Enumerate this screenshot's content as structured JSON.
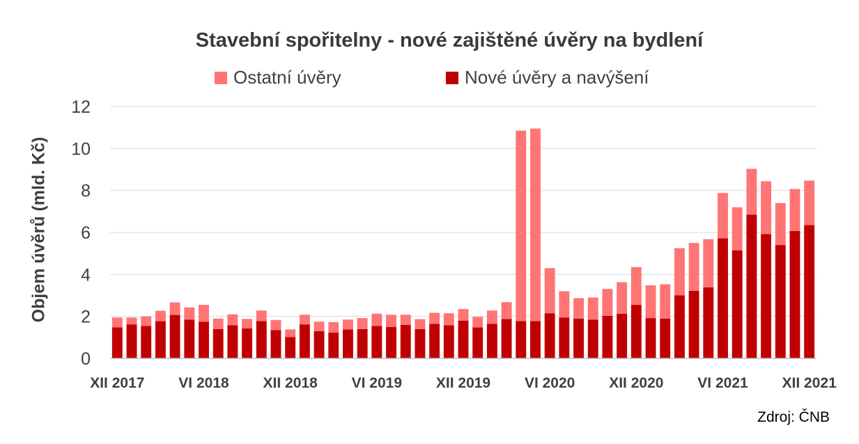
{
  "chart_data": {
    "type": "bar",
    "stacked": true,
    "title": "Stavební spořitelny - nové zajištěné úvěry na bydlení",
    "ylabel": "Objem úvěrů (mld. Kč)",
    "xlabel": "",
    "ylim": [
      0,
      12
    ],
    "yticks": [
      0,
      2,
      4,
      6,
      8,
      10,
      12
    ],
    "grid": true,
    "legend_position": "top",
    "x_tick_labels": [
      "XII 2017",
      "VI 2018",
      "XII 2018",
      "VI 2019",
      "XII 2019",
      "VI 2020",
      "XII 2020",
      "VI 2021",
      "XII 2021"
    ],
    "categories": [
      "XII 2017",
      "I 2018",
      "II 2018",
      "III 2018",
      "IV 2018",
      "V 2018",
      "VI 2018",
      "VII 2018",
      "VIII 2018",
      "IX 2018",
      "X 2018",
      "XI 2018",
      "XII 2018",
      "I 2019",
      "II 2019",
      "III 2019",
      "IV 2019",
      "V 2019",
      "VI 2019",
      "VII 2019",
      "VIII 2019",
      "IX 2019",
      "X 2019",
      "XI 2019",
      "XII 2019",
      "I 2020",
      "II 2020",
      "III 2020",
      "IV 2020",
      "V 2020",
      "VI 2020",
      "VII 2020",
      "VIII 2020",
      "IX 2020",
      "X 2020",
      "XI 2020",
      "XII 2020",
      "I 2021",
      "II 2021",
      "III 2021",
      "IV 2021",
      "V 2021",
      "VI 2021",
      "VII 2021",
      "VIII 2021",
      "IX 2021",
      "X 2021",
      "XI 2021",
      "XII 2021"
    ],
    "series": [
      {
        "name": "Nové úvěry a navýšení",
        "color": "#c00000",
        "values": [
          1.48,
          1.62,
          1.55,
          1.77,
          2.07,
          1.85,
          1.75,
          1.4,
          1.58,
          1.43,
          1.78,
          1.35,
          1.02,
          1.62,
          1.3,
          1.23,
          1.38,
          1.4,
          1.55,
          1.5,
          1.6,
          1.4,
          1.65,
          1.58,
          1.8,
          1.48,
          1.65,
          1.88,
          1.78,
          1.78,
          2.15,
          1.95,
          1.9,
          1.85,
          2.03,
          2.13,
          2.55,
          1.92,
          1.9,
          3.0,
          3.22,
          3.38,
          5.72,
          5.15,
          6.85,
          5.92,
          5.4,
          6.07,
          6.35
        ]
      },
      {
        "name": "Ostatní úvěry",
        "color": "#ff7575",
        "values": [
          0.47,
          0.33,
          0.45,
          0.5,
          0.6,
          0.58,
          0.8,
          0.5,
          0.52,
          0.45,
          0.5,
          0.48,
          0.36,
          0.46,
          0.45,
          0.5,
          0.47,
          0.52,
          0.58,
          0.58,
          0.48,
          0.47,
          0.52,
          0.57,
          0.55,
          0.5,
          0.63,
          0.8,
          9.07,
          9.17,
          2.15,
          1.25,
          0.97,
          1.05,
          1.28,
          1.5,
          1.8,
          1.56,
          1.63,
          2.25,
          2.28,
          2.3,
          2.16,
          2.05,
          2.18,
          2.52,
          2.0,
          2.0,
          2.12
        ]
      }
    ],
    "source": "Zdroj: ČNB"
  }
}
